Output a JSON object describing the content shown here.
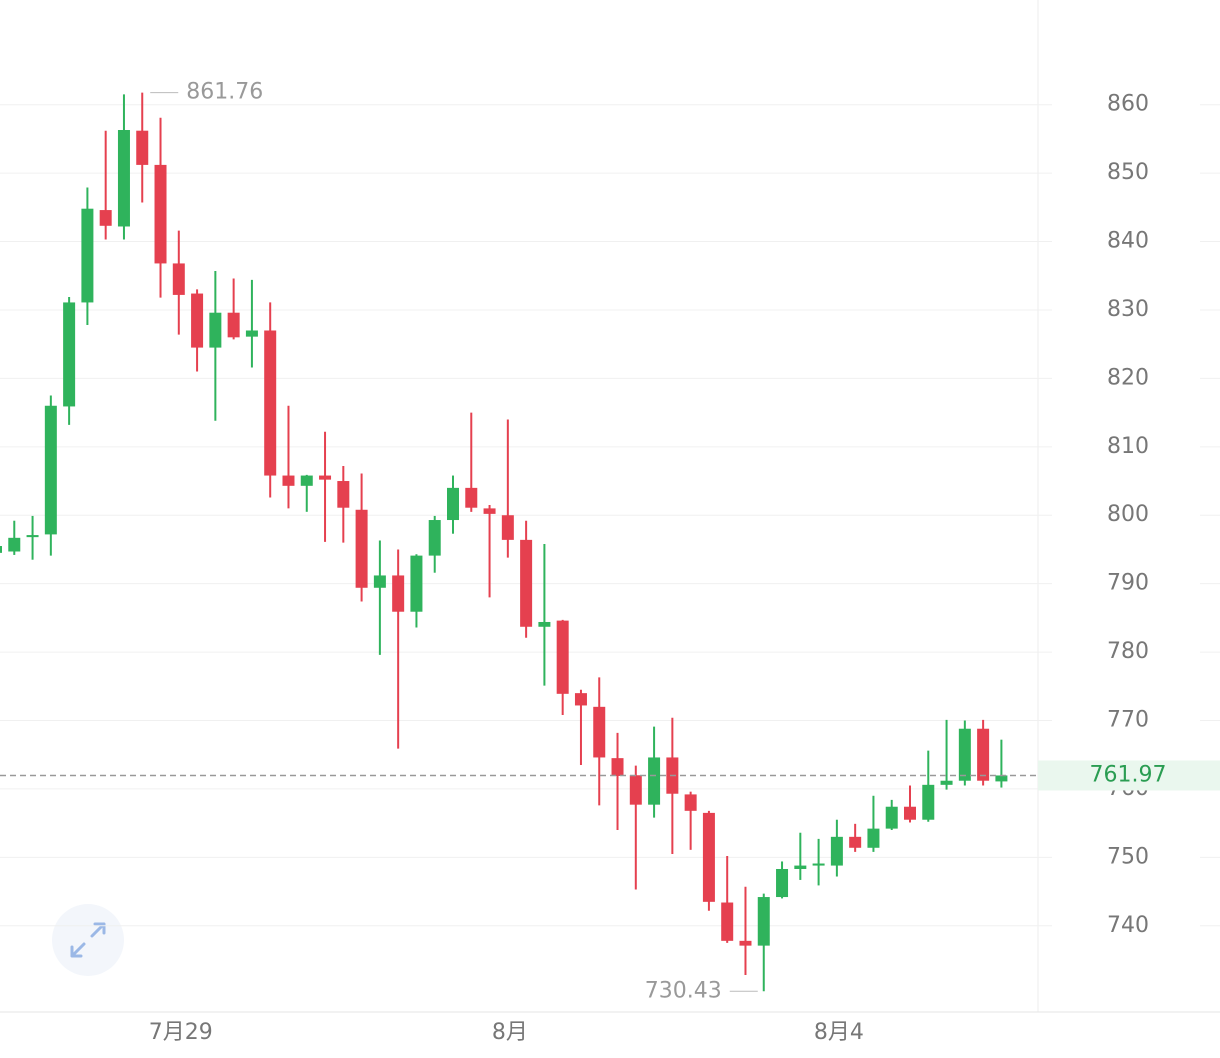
{
  "chart_data": {
    "type": "candlestick",
    "categories": [
      null,
      null,
      null,
      null,
      null,
      null,
      null,
      null,
      null,
      null,
      "7月29",
      null,
      null,
      null,
      null,
      null,
      null,
      null,
      null,
      null,
      null,
      null,
      null,
      null,
      null,
      null,
      null,
      null,
      "8月",
      null,
      null,
      null,
      null,
      null,
      null,
      null,
      null,
      null,
      null,
      null,
      null,
      null,
      null,
      null,
      null,
      null,
      "8月4",
      null,
      null,
      null,
      null,
      null,
      null,
      null,
      null,
      null
    ],
    "open": [
      794.5,
      794.7,
      796.8,
      797.2,
      815.9,
      831.1,
      844.6,
      842.2,
      856.2,
      851.2,
      836.8,
      832.4,
      824.5,
      829.6,
      826.1,
      827,
      805.8,
      804.3,
      805.8,
      805,
      800.8,
      789.4,
      791.2,
      785.9,
      794.1,
      799.3,
      804,
      801,
      800,
      796.4,
      783.7,
      784.6,
      774,
      772,
      764.5,
      762,
      757.7,
      764.6,
      759.2,
      756.5,
      743.4,
      737.8,
      737.1,
      744.2,
      748.3,
      748.8,
      748.8,
      753,
      751.4,
      754.2,
      757.4,
      755.5,
      760.6,
      761.2,
      768.8,
      761.1
    ],
    "high": [
      796,
      799.2,
      799.9,
      817.5,
      831.9,
      847.9,
      856.2,
      861.5,
      861.76,
      858.1,
      841.6,
      833,
      835.7,
      834.6,
      834.4,
      831.1,
      816,
      805.9,
      812.2,
      807.2,
      806.1,
      796.3,
      795,
      794.3,
      799.9,
      805.8,
      815,
      801.5,
      814,
      799.2,
      795.8,
      784.7,
      774.5,
      776.3,
      768.2,
      763.4,
      769.1,
      770.4,
      759.6,
      756.8,
      750.2,
      745.7,
      744.7,
      749.4,
      753.6,
      752.7,
      755.5,
      754.9,
      759,
      758.4,
      760.5,
      765.6,
      770.1,
      770,
      770.1,
      767.2
    ],
    "low": [
      794,
      794.2,
      793.5,
      794.1,
      813.2,
      827.8,
      840.3,
      840.3,
      845.7,
      831.8,
      826.4,
      821,
      813.8,
      825.7,
      821.6,
      802.6,
      801,
      800.5,
      796.1,
      796,
      787.4,
      779.6,
      765.9,
      783.6,
      791.6,
      797.3,
      800.5,
      788,
      793.8,
      782.1,
      775.1,
      770.8,
      763.5,
      757.6,
      754,
      745.3,
      755.8,
      750.5,
      751.1,
      742.2,
      737.5,
      732.8,
      730.43,
      744,
      746.7,
      745.9,
      747.2,
      750.8,
      750.8,
      754,
      755.1,
      755.2,
      759.9,
      760.5,
      760.5,
      760.2
    ],
    "close": [
      795.5,
      796.7,
      797.1,
      816,
      831.1,
      844.8,
      842.3,
      856.3,
      851.2,
      836.8,
      832.2,
      824.5,
      829.6,
      826,
      827,
      805.8,
      804.3,
      805.8,
      805.2,
      801.1,
      789.4,
      791.2,
      785.9,
      794.1,
      799.3,
      804,
      801.1,
      800.2,
      796.4,
      783.7,
      784.4,
      773.9,
      772.2,
      764.6,
      761.9,
      757.7,
      764.6,
      759.3,
      756.8,
      743.5,
      737.8,
      737.1,
      744.2,
      748.3,
      748.8,
      749.1,
      753,
      751.4,
      754.2,
      757.4,
      755.5,
      760.6,
      761.2,
      768.8,
      761.2,
      761.97
    ],
    "up_color": "#2fb35c",
    "down_color": "#e5404f",
    "ylim": [
      727.4,
      875.3
    ],
    "yticks": [
      740,
      750,
      760,
      770,
      780,
      790,
      800,
      810,
      820,
      830,
      840,
      850,
      860
    ],
    "grid": true
  }
}
